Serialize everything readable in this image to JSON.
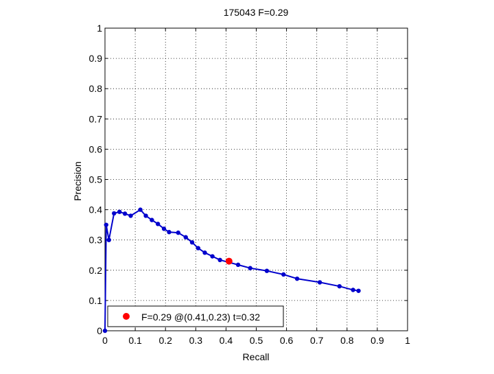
{
  "chart_data": {
    "type": "line",
    "title": "175043 F=0.29",
    "xlabel": "Recall",
    "ylabel": "Precision",
    "xlim": [
      0,
      1
    ],
    "ylim": [
      0,
      1
    ],
    "grid": true,
    "x_ticks": [
      "0",
      "0.1",
      "0.2",
      "0.3",
      "0.4",
      "0.5",
      "0.6",
      "0.7",
      "0.8",
      "0.9",
      "1"
    ],
    "y_ticks": [
      "0",
      "0.1",
      "0.2",
      "0.3",
      "0.4",
      "0.5",
      "0.6",
      "0.7",
      "0.8",
      "0.9",
      "1"
    ],
    "series": [
      {
        "color": "#0000cc",
        "points": [
          [
            0.0,
            0.0
          ],
          [
            0.004,
            0.35
          ],
          [
            0.013,
            0.3
          ],
          [
            0.03,
            0.388
          ],
          [
            0.048,
            0.393
          ],
          [
            0.066,
            0.387
          ],
          [
            0.085,
            0.38
          ],
          [
            0.117,
            0.4
          ],
          [
            0.135,
            0.38
          ],
          [
            0.155,
            0.366
          ],
          [
            0.175,
            0.353
          ],
          [
            0.195,
            0.337
          ],
          [
            0.212,
            0.326
          ],
          [
            0.242,
            0.324
          ],
          [
            0.267,
            0.309
          ],
          [
            0.288,
            0.292
          ],
          [
            0.308,
            0.273
          ],
          [
            0.33,
            0.258
          ],
          [
            0.355,
            0.246
          ],
          [
            0.38,
            0.234
          ],
          [
            0.41,
            0.226
          ],
          [
            0.44,
            0.218
          ],
          [
            0.48,
            0.207
          ],
          [
            0.535,
            0.198
          ],
          [
            0.59,
            0.186
          ],
          [
            0.635,
            0.172
          ],
          [
            0.71,
            0.16
          ],
          [
            0.775,
            0.147
          ],
          [
            0.82,
            0.135
          ],
          [
            0.838,
            0.132
          ]
        ]
      }
    ],
    "highlight_point": {
      "x": 0.41,
      "y": 0.23,
      "color": "#ff0000"
    },
    "legend": {
      "position": "bottom-left",
      "label": "F=0.29 @(0.41,0.23) t=0.32"
    }
  }
}
